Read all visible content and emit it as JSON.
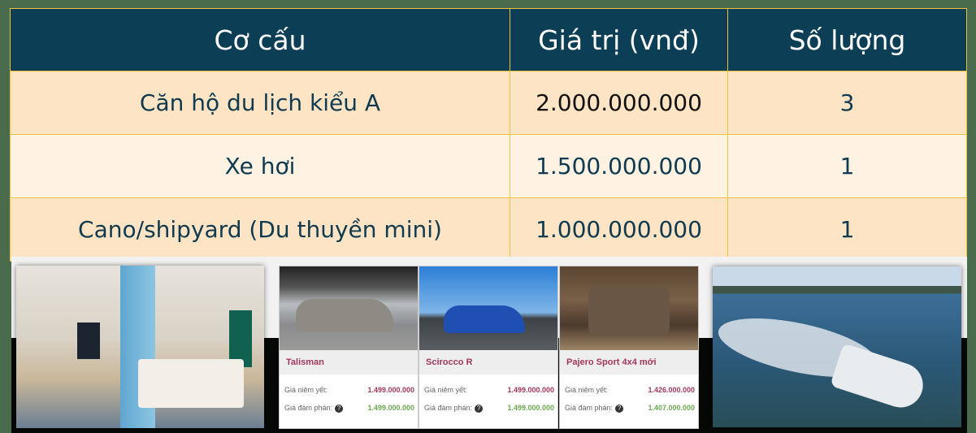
{
  "table": {
    "headers": [
      "Cơ cấu",
      "Giá trị (vnđ)",
      "Số lượng"
    ],
    "rows": [
      {
        "item": "Căn hộ du lịch kiểu A",
        "value": "2.000.000.000",
        "qty": "3"
      },
      {
        "item": "Xe hơi",
        "value": "1.500.000.000",
        "qty": "1"
      },
      {
        "item": "Cano/shipyard (Du thuyền mini)",
        "value": "1.000.000.000",
        "qty": "1"
      }
    ]
  },
  "cars": [
    {
      "name": "Talisman",
      "list_label": "Giá niêm yết:",
      "list_price": "1.499.000.000",
      "nego_label": "Giá đàm phán:",
      "nego_price": "1.499.000.000"
    },
    {
      "name": "Scirocco R",
      "list_label": "Giá niêm yết:",
      "list_price": "1.499.000.000",
      "nego_label": "Giá đàm phán:",
      "nego_price": "1.499.000.000"
    },
    {
      "name": "Pajero Sport 4x4 mới",
      "list_label": "Giá niêm yết:",
      "list_price": "1.426.000.000",
      "nego_label": "Giá đàm phán:",
      "nego_price": "1.407.000.000"
    }
  ],
  "help_glyph": "?",
  "colors": {
    "header_bg": "#0c3e56",
    "row_bg": "#fde4c4",
    "border": "#f0c040",
    "price_list": "#a3365e",
    "price_nego": "#6aa84f"
  }
}
